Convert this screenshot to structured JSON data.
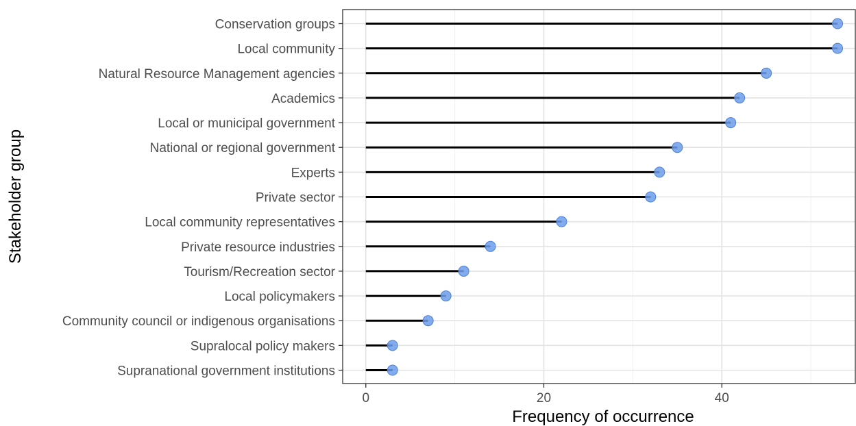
{
  "chart_data": {
    "type": "lollipop",
    "title": "",
    "xlabel": "Frequency of occurrence",
    "ylabel": "Stakeholder group",
    "xlim": [
      -2.6,
      55
    ],
    "xticks": [
      0,
      20,
      40
    ],
    "grid": true,
    "legend": "none",
    "point_color": "#6d9eeb",
    "categories": [
      "Conservation groups",
      "Local community",
      "Natural Resource Management agencies",
      "Academics",
      "Local or municipal government",
      "National or regional government",
      "Experts",
      "Private sector",
      "Local community representatives",
      "Private resource industries",
      "Tourism/Recreation sector",
      "Local policymakers",
      "Community council or indigenous organisations",
      "Supralocal policy makers",
      "Supranational government institutions"
    ],
    "values": [
      53,
      53,
      45,
      42,
      41,
      35,
      33,
      32,
      22,
      14,
      11,
      9,
      7,
      3,
      3
    ]
  }
}
